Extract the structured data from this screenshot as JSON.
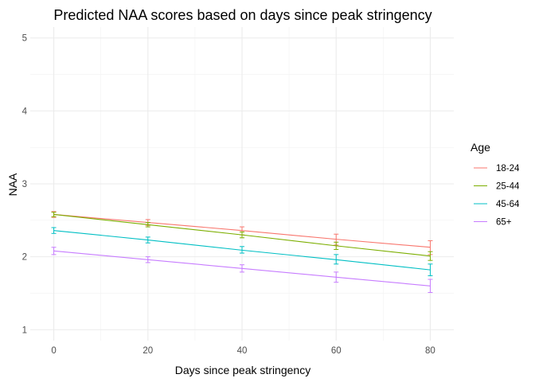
{
  "chart_data": {
    "type": "line",
    "title": "Predicted NAA scores based on days since peak stringency",
    "xlabel": "Days since peak stringency",
    "ylabel": "NAA",
    "x": [
      0,
      20,
      40,
      60,
      80
    ],
    "xticks": [
      0,
      20,
      40,
      60,
      80
    ],
    "yticks": [
      1,
      2,
      3,
      4,
      5
    ],
    "xlim": [
      -5,
      85
    ],
    "ylim": [
      0.85,
      5.15
    ],
    "grid": true,
    "legend": {
      "title": "Age",
      "position": "right"
    },
    "series": [
      {
        "name": "18-24",
        "color": "#F8766D",
        "values": [
          2.58,
          2.47,
          2.36,
          2.24,
          2.13
        ],
        "err_low": [
          2.54,
          2.43,
          2.3,
          2.16,
          2.03
        ],
        "err_high": [
          2.62,
          2.51,
          2.41,
          2.31,
          2.22
        ]
      },
      {
        "name": "25-44",
        "color": "#7CAE00",
        "values": [
          2.58,
          2.44,
          2.3,
          2.15,
          2.01
        ],
        "err_low": [
          2.55,
          2.41,
          2.26,
          2.1,
          1.95
        ],
        "err_high": [
          2.61,
          2.47,
          2.34,
          2.2,
          2.07
        ]
      },
      {
        "name": "45-64",
        "color": "#00BFC4",
        "values": [
          2.36,
          2.23,
          2.09,
          1.96,
          1.82
        ],
        "err_low": [
          2.32,
          2.19,
          2.05,
          1.9,
          1.74
        ],
        "err_high": [
          2.4,
          2.27,
          2.14,
          2.03,
          1.9
        ]
      },
      {
        "name": "65+",
        "color": "#C77CFF",
        "values": [
          2.08,
          1.96,
          1.84,
          1.72,
          1.6
        ],
        "err_low": [
          2.03,
          1.92,
          1.79,
          1.65,
          1.51
        ],
        "err_high": [
          2.13,
          2.0,
          1.89,
          1.79,
          1.69
        ]
      }
    ]
  }
}
